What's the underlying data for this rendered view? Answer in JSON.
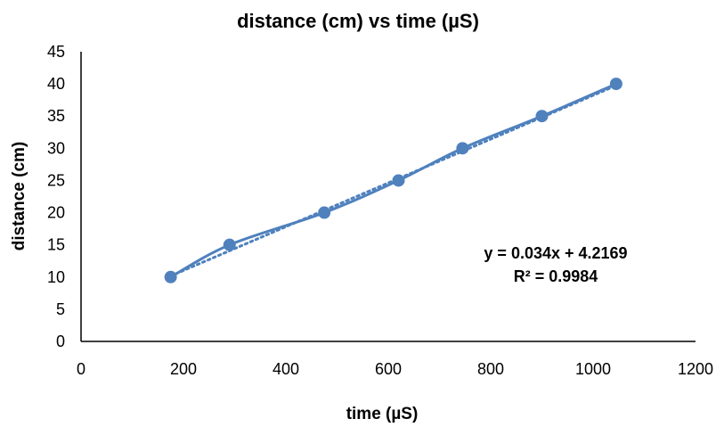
{
  "chart_data": {
    "type": "scatter",
    "title": "distance (cm) vs time (µS)",
    "xlabel": "time (µS)",
    "ylabel": "distance (cm)",
    "xlim": [
      0,
      1200
    ],
    "ylim": [
      0,
      45
    ],
    "x_ticks": [
      0,
      200,
      400,
      600,
      800,
      1000,
      1200
    ],
    "y_ticks": [
      0,
      5,
      10,
      15,
      20,
      25,
      30,
      35,
      40,
      45
    ],
    "grid": false,
    "legend": "none",
    "series": [
      {
        "points": [
          {
            "x": 175,
            "y": 10
          },
          {
            "x": 290,
            "y": 15
          },
          {
            "x": 475,
            "y": 20
          },
          {
            "x": 620,
            "y": 25
          },
          {
            "x": 745,
            "y": 30
          },
          {
            "x": 900,
            "y": 35
          },
          {
            "x": 1045,
            "y": 40
          }
        ],
        "color": "#4f81bd",
        "line": "smooth",
        "marker": "circle"
      }
    ],
    "trendline": {
      "type": "linear",
      "slope": 0.034,
      "intercept": 4.2169,
      "r_squared": 0.9984,
      "style": "dotted",
      "color": "#4f81bd",
      "equation_text": "y = 0.034x + 4.2169",
      "r2_text": "R² = 0.9984"
    }
  },
  "colors": {
    "series": "#4f81bd",
    "axis": "#000000",
    "background": "#ffffff"
  }
}
